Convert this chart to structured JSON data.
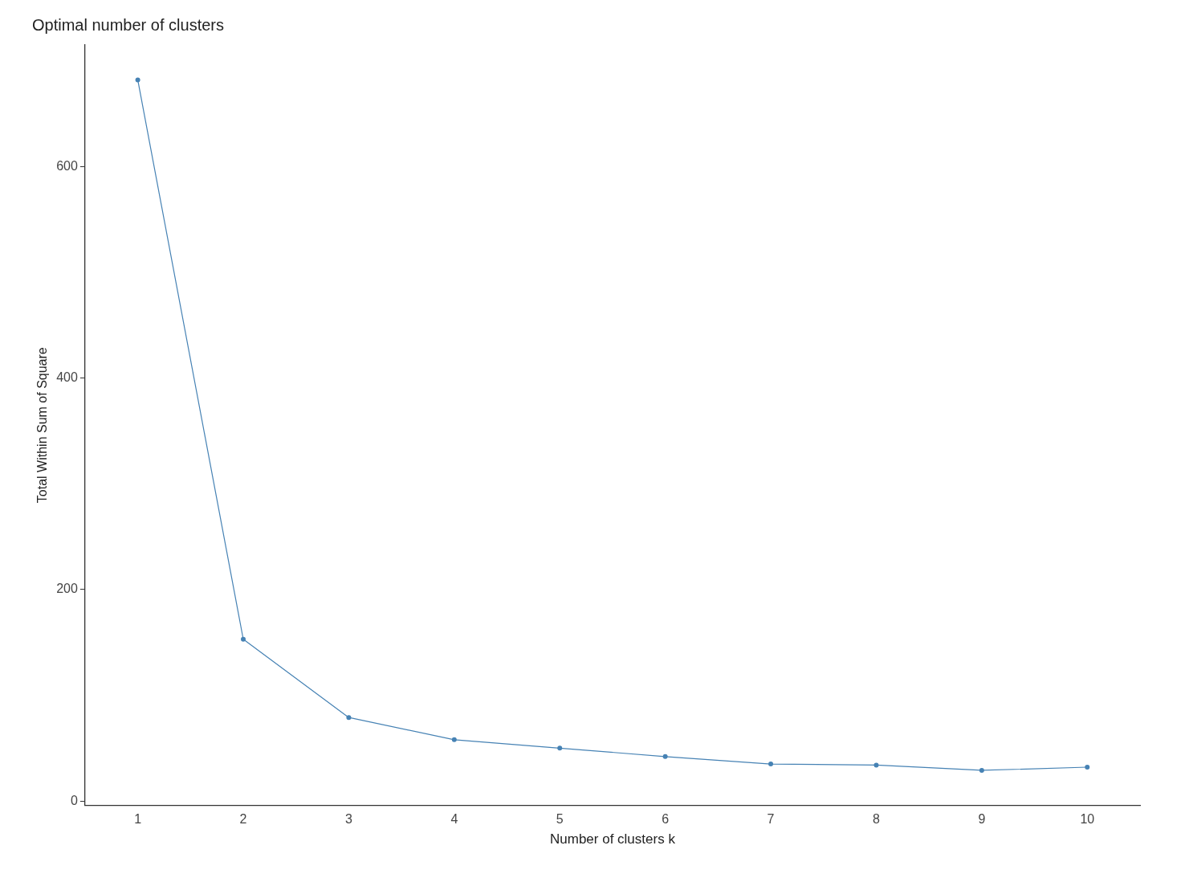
{
  "chart_data": {
    "type": "line",
    "title": "Optimal number of clusters",
    "xlabel": "Number of clusters k",
    "ylabel": "Total Within Sum of Square",
    "categories": [
      "1",
      "2",
      "3",
      "4",
      "5",
      "6",
      "7",
      "8",
      "9",
      "10"
    ],
    "series": [
      {
        "color": "#4682b4",
        "values": [
          682,
          153,
          79,
          58,
          50,
          42,
          35,
          34,
          29,
          32
        ]
      }
    ],
    "ylim": [
      -4,
      715
    ],
    "yticks": [
      0,
      200,
      400,
      600
    ],
    "grid": false,
    "legend": false,
    "marker": "circle",
    "line_style": "solid"
  }
}
